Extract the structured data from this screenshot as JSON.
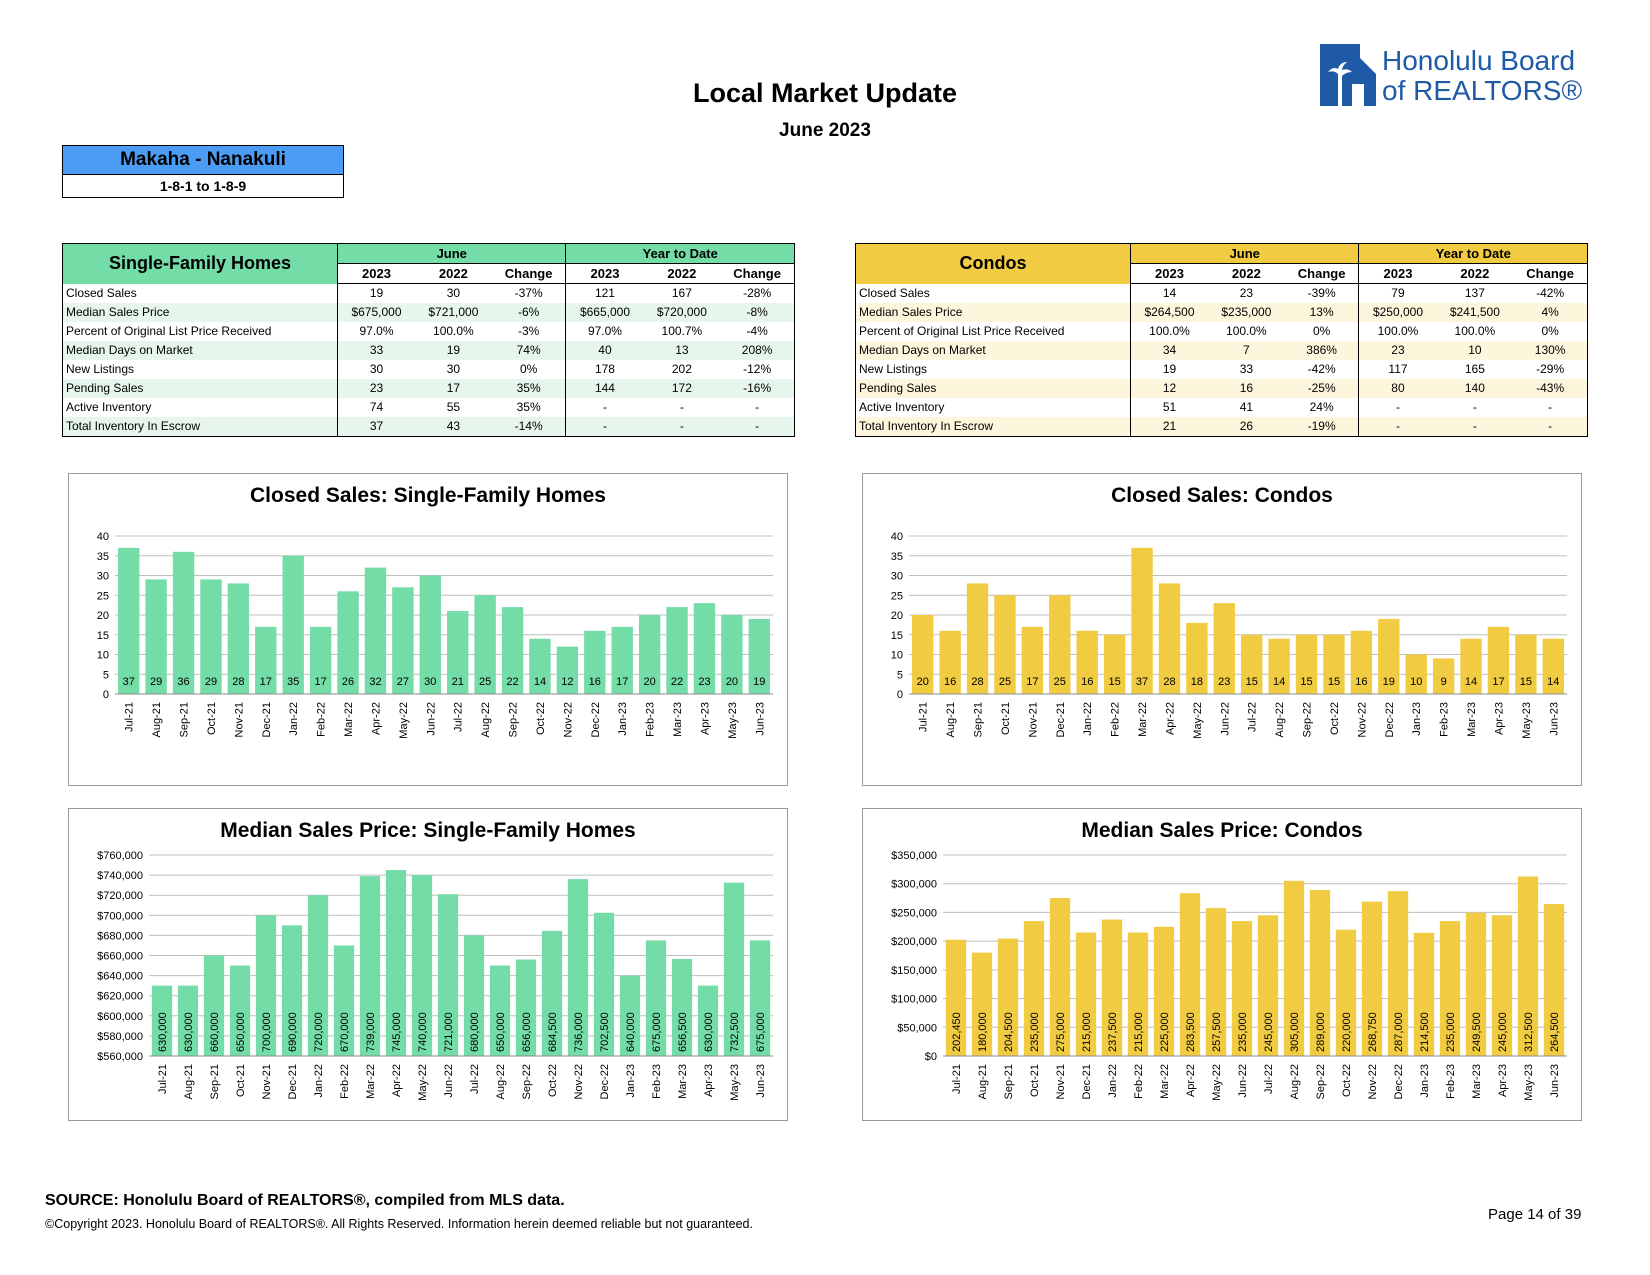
{
  "header": {
    "title": "Local Market Update",
    "subtitle": "June 2023",
    "logo_line1": "Honolulu Board",
    "logo_line2": "of REALTORS®"
  },
  "area": {
    "name": "Makaha - Nanakuli",
    "codes": "1-8-1 to 1-8-9"
  },
  "colors": {
    "sfh": "#74dca7",
    "condo": "#f1cb42",
    "area_header": "#4a9cf5",
    "logo": "#1f5aa6"
  },
  "sfh_table": {
    "title": "Single-Family Homes",
    "group1": "June",
    "group2": "Year to Date",
    "cols": [
      "2023",
      "2022",
      "Change",
      "2023",
      "2022",
      "Change"
    ],
    "rows": [
      {
        "label": "Closed Sales",
        "v": [
          "19",
          "30",
          "-37%",
          "121",
          "167",
          "-28%"
        ]
      },
      {
        "label": "Median Sales Price",
        "v": [
          "$675,000",
          "$721,000",
          "-6%",
          "$665,000",
          "$720,000",
          "-8%"
        ]
      },
      {
        "label": "Percent of Original List Price Received",
        "v": [
          "97.0%",
          "100.0%",
          "-3%",
          "97.0%",
          "100.7%",
          "-4%"
        ]
      },
      {
        "label": "Median Days on Market",
        "v": [
          "33",
          "19",
          "74%",
          "40",
          "13",
          "208%"
        ]
      },
      {
        "label": "New Listings",
        "v": [
          "30",
          "30",
          "0%",
          "178",
          "202",
          "-12%"
        ]
      },
      {
        "label": "Pending Sales",
        "v": [
          "23",
          "17",
          "35%",
          "144",
          "172",
          "-16%"
        ]
      },
      {
        "label": "Active Inventory",
        "v": [
          "74",
          "55",
          "35%",
          "-",
          "-",
          "-"
        ]
      },
      {
        "label": "Total Inventory In Escrow",
        "v": [
          "37",
          "43",
          "-14%",
          "-",
          "-",
          "-"
        ]
      }
    ]
  },
  "condo_table": {
    "title": "Condos",
    "group1": "June",
    "group2": "Year to Date",
    "cols": [
      "2023",
      "2022",
      "Change",
      "2023",
      "2022",
      "Change"
    ],
    "rows": [
      {
        "label": "Closed Sales",
        "v": [
          "14",
          "23",
          "-39%",
          "79",
          "137",
          "-42%"
        ]
      },
      {
        "label": "Median Sales Price",
        "v": [
          "$264,500",
          "$235,000",
          "13%",
          "$250,000",
          "$241,500",
          "4%"
        ]
      },
      {
        "label": "Percent of Original List Price Received",
        "v": [
          "100.0%",
          "100.0%",
          "0%",
          "100.0%",
          "100.0%",
          "0%"
        ]
      },
      {
        "label": "Median Days on Market",
        "v": [
          "34",
          "7",
          "386%",
          "23",
          "10",
          "130%"
        ]
      },
      {
        "label": "New Listings",
        "v": [
          "19",
          "33",
          "-42%",
          "117",
          "165",
          "-29%"
        ]
      },
      {
        "label": "Pending Sales",
        "v": [
          "12",
          "16",
          "-25%",
          "80",
          "140",
          "-43%"
        ]
      },
      {
        "label": "Active Inventory",
        "v": [
          "51",
          "41",
          "24%",
          "-",
          "-",
          "-"
        ]
      },
      {
        "label": "Total Inventory In Escrow",
        "v": [
          "21",
          "26",
          "-19%",
          "-",
          "-",
          "-"
        ]
      }
    ]
  },
  "chart_data": [
    {
      "id": "sfh-closed",
      "type": "bar",
      "title": "Closed Sales: Single-Family Homes",
      "color": "#74dca7",
      "categories": [
        "Jul-21",
        "Aug-21",
        "Sep-21",
        "Oct-21",
        "Nov-21",
        "Dec-21",
        "Jan-22",
        "Feb-22",
        "Mar-22",
        "Apr-22",
        "May-22",
        "Jun-22",
        "Jul-22",
        "Aug-22",
        "Sep-22",
        "Oct-22",
        "Nov-22",
        "Dec-22",
        "Jan-23",
        "Feb-23",
        "Mar-23",
        "Apr-23",
        "May-23",
        "Jun-23"
      ],
      "values": [
        37,
        29,
        36,
        29,
        28,
        17,
        35,
        17,
        26,
        32,
        27,
        30,
        21,
        25,
        22,
        14,
        12,
        16,
        17,
        20,
        22,
        23,
        20,
        19
      ],
      "ylim": [
        0,
        40
      ],
      "yticks": [
        0,
        5,
        10,
        15,
        20,
        25,
        30,
        35,
        40
      ],
      "ytick_labels": [
        "0",
        "5",
        "10",
        "15",
        "20",
        "25",
        "30",
        "35",
        "40"
      ],
      "value_labels": [
        "37",
        "29",
        "36",
        "29",
        "28",
        "17",
        "35",
        "17",
        "26",
        "32",
        "27",
        "30",
        "21",
        "25",
        "22",
        "14",
        "12",
        "16",
        "17",
        "20",
        "22",
        "23",
        "20",
        "19"
      ]
    },
    {
      "id": "condo-closed",
      "type": "bar",
      "title": "Closed Sales: Condos",
      "color": "#f1cb42",
      "categories": [
        "Jul-21",
        "Aug-21",
        "Sep-21",
        "Oct-21",
        "Nov-21",
        "Dec-21",
        "Jan-22",
        "Feb-22",
        "Mar-22",
        "Apr-22",
        "May-22",
        "Jun-22",
        "Jul-22",
        "Aug-22",
        "Sep-22",
        "Oct-22",
        "Nov-22",
        "Dec-22",
        "Jan-23",
        "Feb-23",
        "Mar-23",
        "Apr-23",
        "May-23",
        "Jun-23"
      ],
      "values": [
        20,
        16,
        28,
        25,
        17,
        25,
        16,
        15,
        37,
        28,
        18,
        23,
        15,
        14,
        15,
        15,
        16,
        19,
        10,
        9,
        14,
        17,
        15,
        14
      ],
      "ylim": [
        0,
        40
      ],
      "yticks": [
        0,
        5,
        10,
        15,
        20,
        25,
        30,
        35,
        40
      ],
      "ytick_labels": [
        "0",
        "5",
        "10",
        "15",
        "20",
        "25",
        "30",
        "35",
        "40"
      ],
      "value_labels": [
        "20",
        "16",
        "28",
        "25",
        "17",
        "25",
        "16",
        "15",
        "37",
        "28",
        "18",
        "23",
        "15",
        "14",
        "15",
        "15",
        "16",
        "19",
        "10",
        "9",
        "14",
        "17",
        "15",
        "14"
      ]
    },
    {
      "id": "sfh-price",
      "type": "bar",
      "title": "Median Sales Price: Single-Family Homes",
      "color": "#74dca7",
      "categories": [
        "Jul-21",
        "Aug-21",
        "Sep-21",
        "Oct-21",
        "Nov-21",
        "Dec-21",
        "Jan-22",
        "Feb-22",
        "Mar-22",
        "Apr-22",
        "May-22",
        "Jun-22",
        "Jul-22",
        "Aug-22",
        "Sep-22",
        "Oct-22",
        "Nov-22",
        "Dec-22",
        "Jan-23",
        "Feb-23",
        "Mar-23",
        "Apr-23",
        "May-23",
        "Jun-23"
      ],
      "values": [
        630000,
        630000,
        660000,
        650000,
        700000,
        690000,
        720000,
        670000,
        739000,
        745000,
        740000,
        721000,
        680000,
        650000,
        656000,
        684500,
        736000,
        702500,
        640000,
        675000,
        656500,
        630000,
        732500,
        675000
      ],
      "ylim": [
        560000,
        760000
      ],
      "yticks": [
        560000,
        580000,
        600000,
        620000,
        640000,
        660000,
        680000,
        700000,
        720000,
        740000,
        760000
      ],
      "ytick_labels": [
        "$560,000",
        "$580,000",
        "$600,000",
        "$620,000",
        "$640,000",
        "$660,000",
        "$680,000",
        "$700,000",
        "$720,000",
        "$740,000",
        "$760,000"
      ],
      "value_labels": [
        "630,000",
        "630,000",
        "660,000",
        "650,000",
        "700,000",
        "690,000",
        "720,000",
        "670,000",
        "739,000",
        "745,000",
        "740,000",
        "721,000",
        "680,000",
        "650,000",
        "656,000",
        "684,500",
        "736,000",
        "702,500",
        "640,000",
        "675,000",
        "656,500",
        "630,000",
        "732,500",
        "675,000"
      ]
    },
    {
      "id": "condo-price",
      "type": "bar",
      "title": "Median Sales Price: Condos",
      "color": "#f1cb42",
      "categories": [
        "Jul-21",
        "Aug-21",
        "Sep-21",
        "Oct-21",
        "Nov-21",
        "Dec-21",
        "Jan-22",
        "Feb-22",
        "Mar-22",
        "Apr-22",
        "May-22",
        "Jun-22",
        "Jul-22",
        "Aug-22",
        "Sep-22",
        "Oct-22",
        "Nov-22",
        "Dec-22",
        "Jan-23",
        "Feb-23",
        "Mar-23",
        "Apr-23",
        "May-23",
        "Jun-23"
      ],
      "values": [
        202450,
        180000,
        204500,
        235000,
        275000,
        215000,
        237500,
        215000,
        225000,
        283500,
        257500,
        235000,
        245000,
        305000,
        289000,
        220000,
        268750,
        287000,
        214500,
        235000,
        249500,
        245000,
        312500,
        264500
      ],
      "ylim": [
        0,
        350000
      ],
      "yticks": [
        0,
        50000,
        100000,
        150000,
        200000,
        250000,
        300000,
        350000
      ],
      "ytick_labels": [
        "$0",
        "$50,000",
        "$100,000",
        "$150,000",
        "$200,000",
        "$250,000",
        "$300,000",
        "$350,000"
      ],
      "value_labels": [
        "202,450",
        "180,000",
        "204,500",
        "235,000",
        "275,000",
        "215,000",
        "237,500",
        "215,000",
        "225,000",
        "283,500",
        "257,500",
        "235,000",
        "245,000",
        "305,000",
        "289,000",
        "220,000",
        "268,750",
        "287,000",
        "214,500",
        "235,000",
        "249,500",
        "245,000",
        "312,500",
        "264,500"
      ]
    }
  ],
  "footer": {
    "source": "SOURCE: Honolulu Board of REALTORS®, compiled from MLS data.",
    "copyright": "©Copyright 2023. Honolulu Board of REALTORS®. All Rights Reserved. Information herein deemed reliable but not guaranteed.",
    "page": "Page 14 of 39"
  }
}
